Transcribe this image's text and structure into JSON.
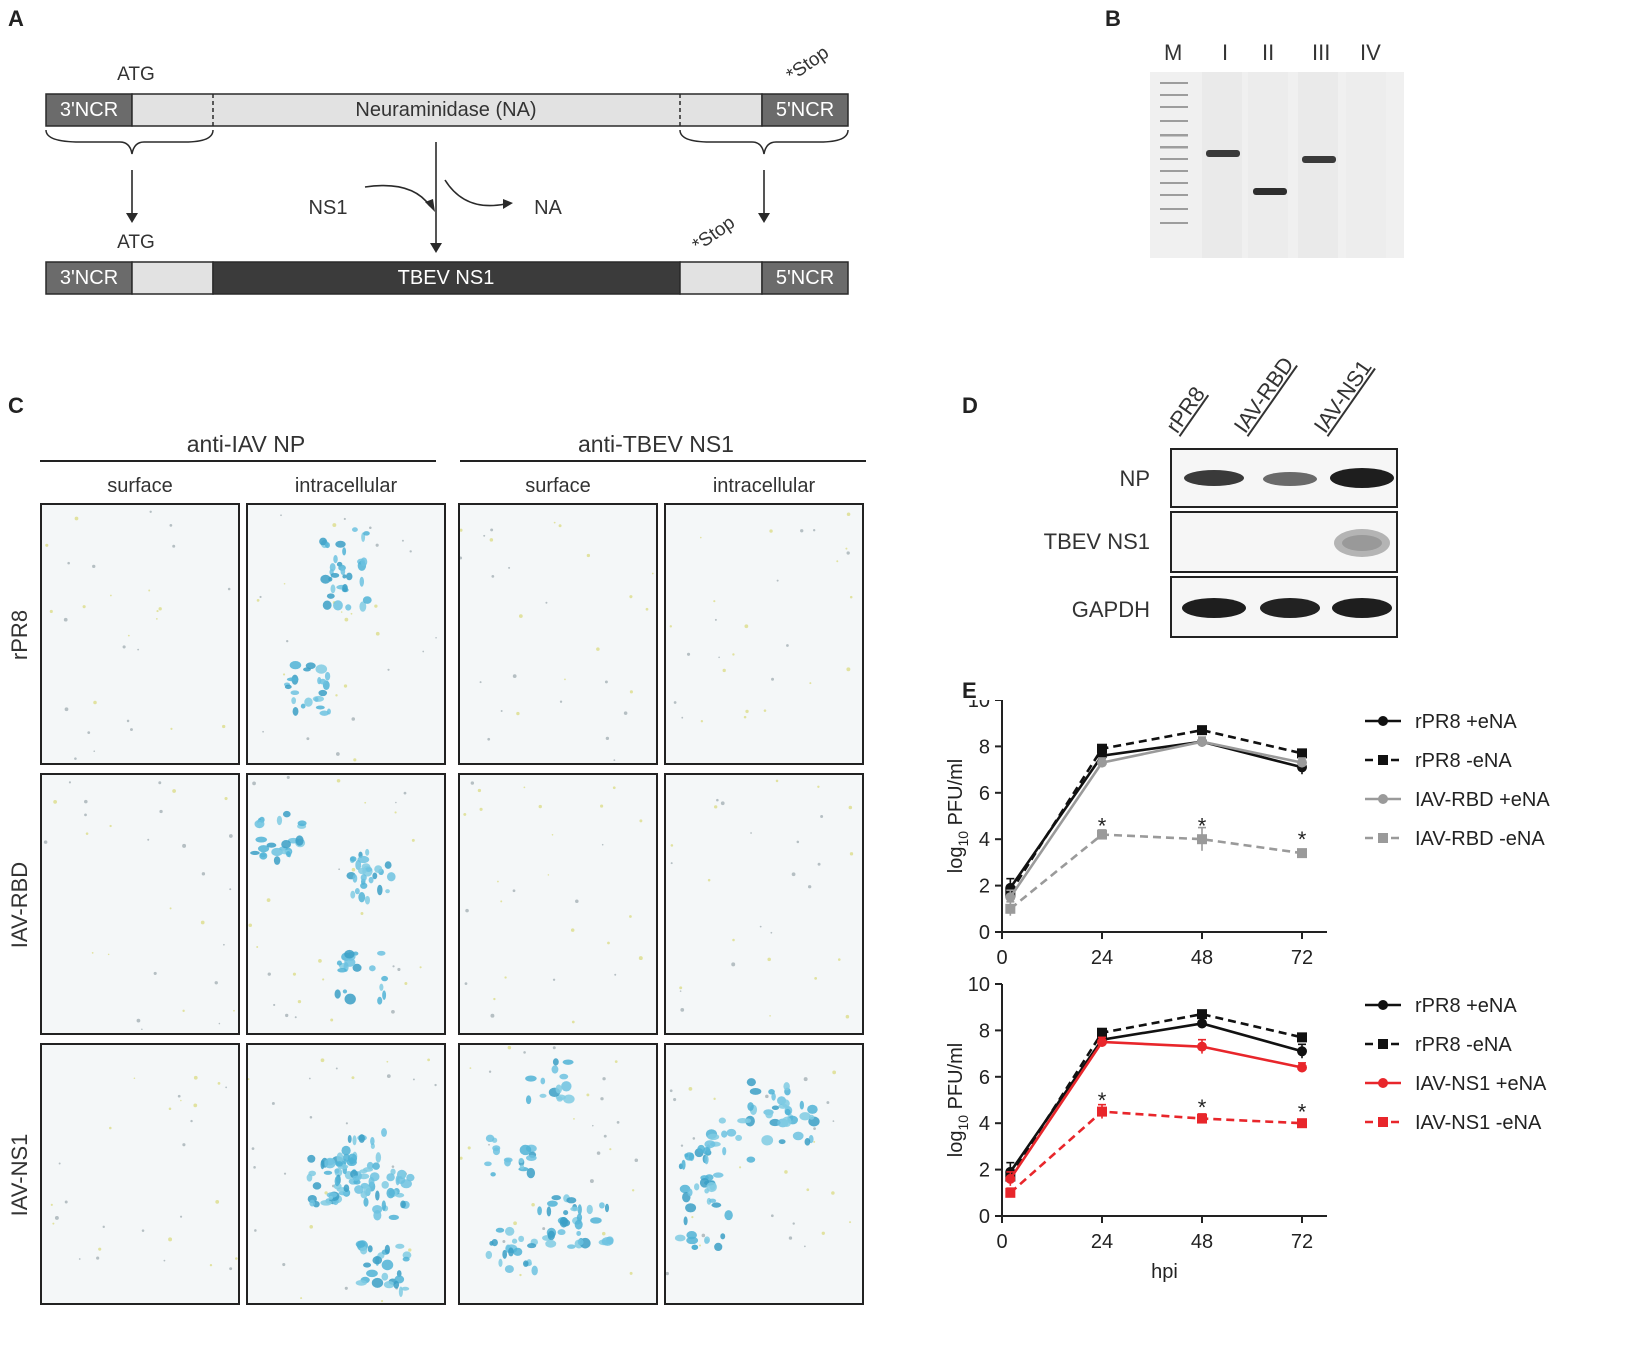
{
  "panels": {
    "A": {
      "letter": "A",
      "atg_top": "ATG",
      "stop_top": "*Stop",
      "top_segments": {
        "ncr3": "3'NCR",
        "na": "Neuraminidase (NA)",
        "ncr5": "5'NCR"
      },
      "swap_in": "NS1",
      "swap_out": "NA",
      "atg_bottom": "ATG",
      "stop_bottom": "*Stop",
      "bottom_segments": {
        "ncr3": "3'NCR",
        "ns1": "TBEV NS1",
        "ncr5": "5'NCR"
      }
    },
    "B": {
      "letter": "B",
      "lanes": [
        "M",
        "I",
        "II",
        "III",
        "IV"
      ]
    },
    "C": {
      "letter": "C",
      "group_left": "anti-IAV NP",
      "group_right": "anti-TBEV NS1",
      "columns": [
        "surface",
        "intracellular",
        "surface",
        "intracellular"
      ],
      "rows": [
        "rPR8",
        "IAV-RBD",
        "IAV-NS1"
      ]
    },
    "D": {
      "letter": "D",
      "lanes": [
        "rPR8",
        "IAV-RBD",
        "IAV-NS1"
      ],
      "rows": [
        "NP",
        "TBEV NS1",
        "GAPDH"
      ]
    },
    "E": {
      "letter": "E"
    }
  },
  "chart_data": [
    {
      "type": "line",
      "ylabel": "log10 PFU/ml",
      "xlabel": "",
      "x_ticks": [
        "0",
        "24",
        "48",
        "72"
      ],
      "y_ticks": [
        "0",
        "2",
        "4",
        "6",
        "8",
        "10"
      ],
      "xlim": [
        0,
        78
      ],
      "ylim": [
        0,
        10
      ],
      "x": [
        2,
        24,
        48,
        72
      ],
      "series": [
        {
          "name": "rPR8 +eNA",
          "values": [
            1.9,
            7.6,
            8.2,
            7.1
          ],
          "errors": [
            0.4,
            0.2,
            0.1,
            0.3
          ],
          "color": "#111111",
          "dashed": false,
          "marker": "circle"
        },
        {
          "name": "rPR8 -eNA",
          "values": [
            1.7,
            7.9,
            8.7,
            7.7
          ],
          "errors": [
            0.3,
            0.1,
            0.1,
            0.1
          ],
          "color": "#111111",
          "dashed": true,
          "marker": "square"
        },
        {
          "name": "IAV-RBD +eNA",
          "values": [
            1.5,
            7.3,
            8.2,
            7.3
          ],
          "errors": [
            0.3,
            0.2,
            0.2,
            0.2
          ],
          "color": "#9a9a9a",
          "dashed": false,
          "marker": "circle"
        },
        {
          "name": "IAV-RBD -eNA",
          "values": [
            1.0,
            4.2,
            4.0,
            3.4
          ],
          "errors": [
            0.3,
            0.2,
            0.5,
            0.1
          ],
          "color": "#9a9a9a",
          "dashed": true,
          "marker": "square"
        }
      ],
      "annotations": [
        {
          "x": 24,
          "y": 4.6,
          "text": "*"
        },
        {
          "x": 48,
          "y": 4.6,
          "text": "*"
        },
        {
          "x": 72,
          "y": 4.0,
          "text": "*"
        }
      ]
    },
    {
      "type": "line",
      "ylabel": "log10 PFU/ml",
      "xlabel": "hpi",
      "x_ticks": [
        "0",
        "24",
        "48",
        "72"
      ],
      "y_ticks": [
        "0",
        "2",
        "4",
        "6",
        "8",
        "10"
      ],
      "xlim": [
        0,
        78
      ],
      "ylim": [
        0,
        10
      ],
      "x": [
        2,
        24,
        48,
        72
      ],
      "series": [
        {
          "name": "rPR8 +eNA",
          "values": [
            1.9,
            7.6,
            8.3,
            7.1
          ],
          "errors": [
            0.4,
            0.2,
            0.1,
            0.3
          ],
          "color": "#111111",
          "dashed": false,
          "marker": "circle"
        },
        {
          "name": "rPR8 -eNA",
          "values": [
            1.7,
            7.9,
            8.7,
            7.7
          ],
          "errors": [
            0.3,
            0.1,
            0.1,
            0.1
          ],
          "color": "#111111",
          "dashed": true,
          "marker": "square"
        },
        {
          "name": "IAV-NS1 +eNA",
          "values": [
            1.6,
            7.5,
            7.3,
            6.4
          ],
          "errors": [
            0.3,
            0.2,
            0.3,
            0.2
          ],
          "color": "#e8262b",
          "dashed": false,
          "marker": "circle"
        },
        {
          "name": "IAV-NS1 -eNA",
          "values": [
            1.0,
            4.5,
            4.2,
            4.0
          ],
          "errors": [
            0.2,
            0.3,
            0.2,
            0.1
          ],
          "color": "#e8262b",
          "dashed": true,
          "marker": "square"
        }
      ],
      "annotations": [
        {
          "x": 24,
          "y": 5.0,
          "text": "*"
        },
        {
          "x": 48,
          "y": 4.7,
          "text": "*"
        },
        {
          "x": 72,
          "y": 4.5,
          "text": "*"
        }
      ]
    }
  ]
}
